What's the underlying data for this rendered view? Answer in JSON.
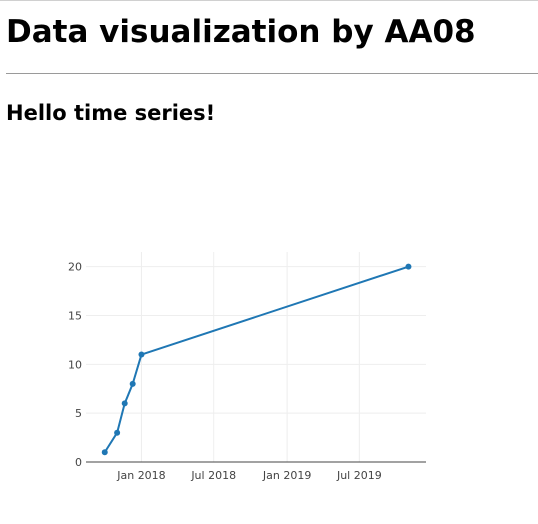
{
  "page": {
    "title": "Data visualization by AA08",
    "subtitle": "Hello time series!"
  },
  "chart_data": {
    "type": "line",
    "x": [
      "2017-10-01",
      "2017-11-01",
      "2017-11-20",
      "2017-12-10",
      "2018-01-01",
      "2019-11-01"
    ],
    "values": [
      1,
      3,
      6,
      8,
      11,
      20
    ],
    "xlim": [
      "2017-08-15",
      "2019-12-15"
    ],
    "ylim": [
      0,
      21.5
    ],
    "x_ticks": [
      {
        "date": "2018-01-01",
        "label": "Jan 2018"
      },
      {
        "date": "2018-07-01",
        "label": "Jul 2018"
      },
      {
        "date": "2019-01-01",
        "label": "Jan 2019"
      },
      {
        "date": "2019-07-01",
        "label": "Jul 2019"
      }
    ],
    "y_ticks": [
      0,
      5,
      10,
      15,
      20
    ],
    "grid": true,
    "markers": true,
    "line_color": "#1f77b4",
    "grid_color": "#eeeeee",
    "axis_color": "#444444"
  }
}
